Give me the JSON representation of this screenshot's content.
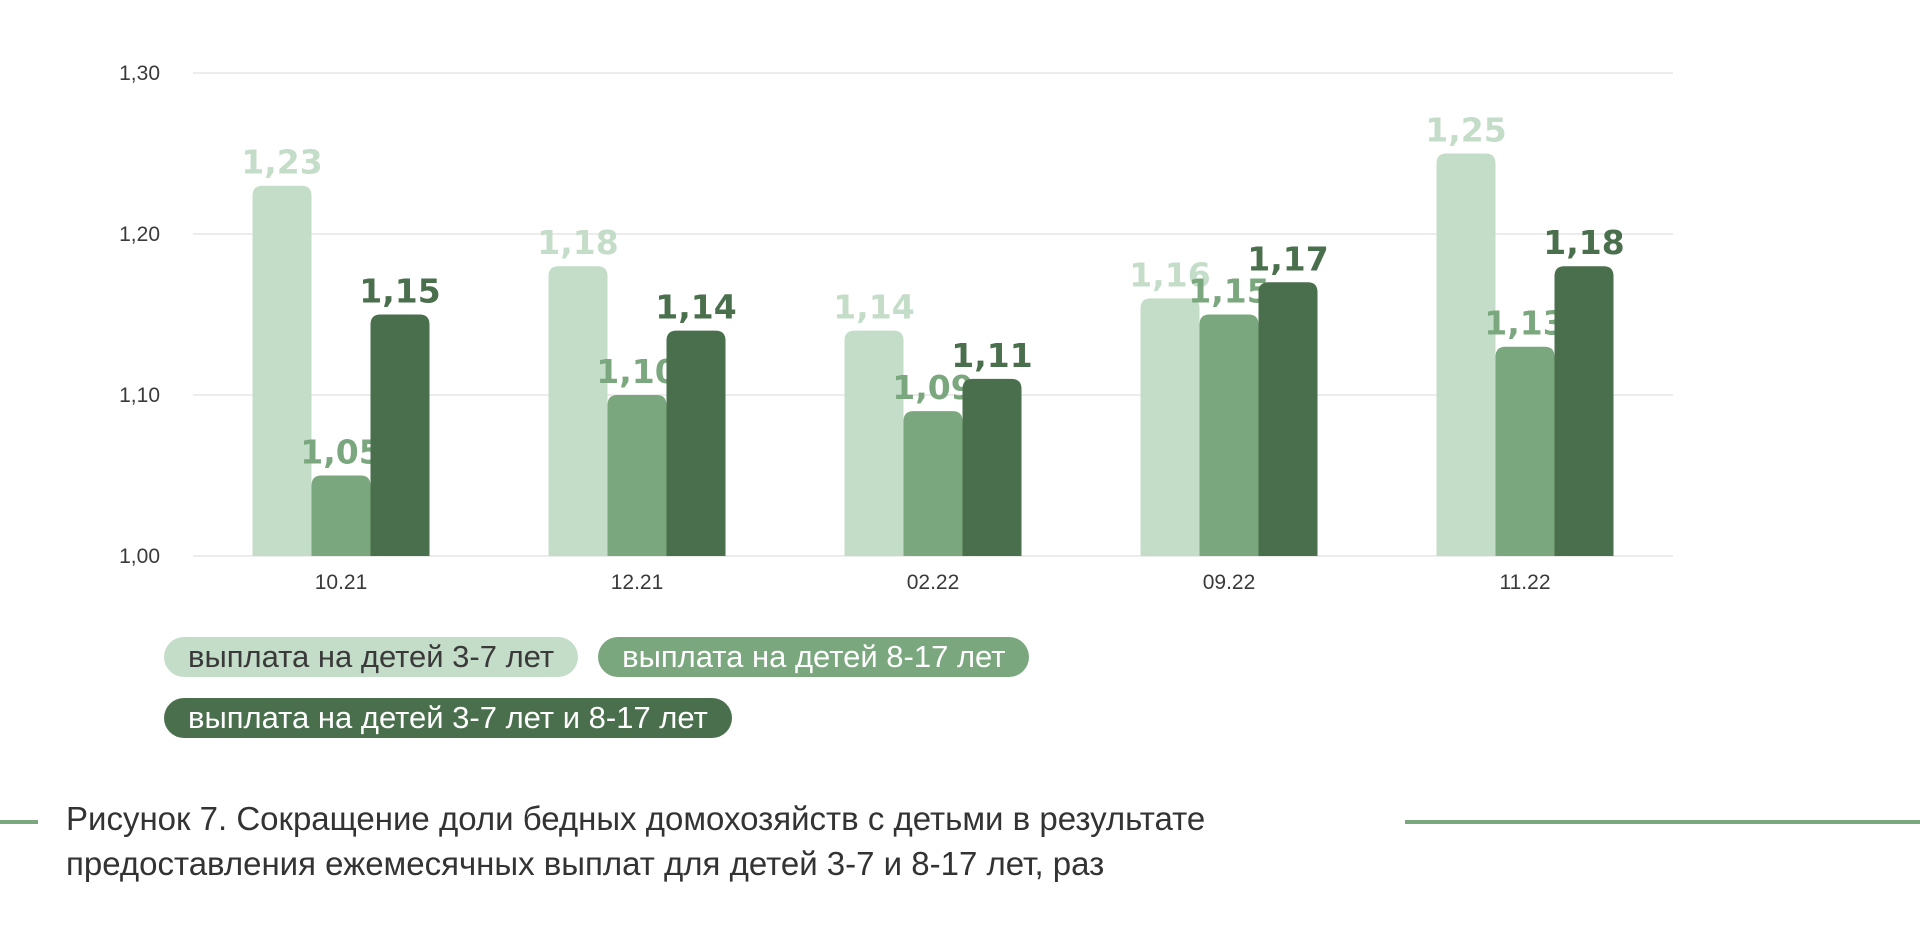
{
  "colors": {
    "series1": "#c4ddc8",
    "series2": "#7aa77d",
    "series3": "#4a6f4c",
    "legend_text_light": "#3a3a3a",
    "legend_text_dark": "#ffffff",
    "rule": "#7aa77d",
    "grid": "#e6e6e6"
  },
  "chart_data": {
    "type": "bar",
    "categories": [
      "10.21",
      "12.21",
      "02.22",
      "09.22",
      "11.22"
    ],
    "series": [
      {
        "name": "выплата на детей 3-7 лет",
        "values": [
          1.23,
          1.18,
          1.14,
          1.16,
          1.25
        ],
        "labels": [
          "1,23",
          "1,18",
          "1,14",
          "1,16",
          "1,25"
        ]
      },
      {
        "name": "выплата на детей 8-17 лет",
        "values": [
          1.05,
          1.1,
          1.09,
          1.15,
          1.13
        ],
        "labels": [
          "1,05",
          "1,10",
          "1,09",
          "1,15",
          "1,13"
        ]
      },
      {
        "name": "выплата на детей 3-7 лет и 8-17 лет",
        "values": [
          1.15,
          1.14,
          1.11,
          1.17,
          1.18
        ],
        "labels": [
          "1,15",
          "1,14",
          "1,11",
          "1,17",
          "1,18"
        ]
      }
    ],
    "ylim": [
      1.0,
      1.3
    ],
    "yticks": [
      1.0,
      1.1,
      1.2,
      1.3
    ],
    "ytick_labels": [
      "1,00",
      "1,10",
      "1,20",
      "1,30"
    ],
    "grid": true,
    "legend_position": "bottom-left"
  },
  "legend": {
    "item1": "выплата на детей 3-7 лет",
    "item2": "выплата на детей 8-17 лет",
    "item3": "выплата на детей 3-7 лет и 8-17 лет"
  },
  "caption": {
    "line1": "Рисунок 7. Сокращение доли бедных домохозяйств с детьми в результате",
    "line2": "предоставления ежемесячных выплат для детей 3-7 и 8-17 лет, раз"
  }
}
